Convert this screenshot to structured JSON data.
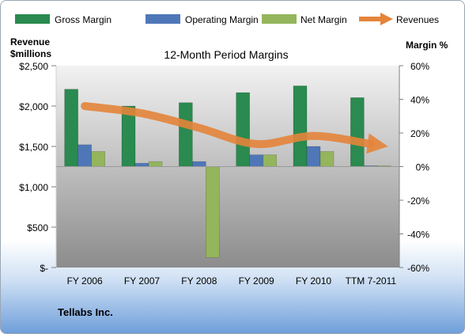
{
  "company": "Tellabs Inc.",
  "colors": {
    "gross_margin": "#2a8a4f",
    "operating_margin": "#4f77b8",
    "net_margin": "#94b55c",
    "revenues": "#e4843a",
    "plot_top": "#f2f2f2",
    "plot_bottom": "#8c8c8c"
  },
  "chart_data": {
    "type": "bar",
    "title": "12-Month Period Margins",
    "y_left_label_lines": [
      "Revenue",
      "$millions"
    ],
    "y_right_label": "Margin %",
    "categories": [
      "FY 2006",
      "FY 2007",
      "FY 2008",
      "FY 2009",
      "FY 2010",
      "TTM 7-2011"
    ],
    "ylim_left": [
      0,
      2500
    ],
    "ylim_right": [
      -60,
      60
    ],
    "left_ticks": [
      {
        "value": 0,
        "label": "$-"
      },
      {
        "value": 500,
        "label": "$500"
      },
      {
        "value": 1000,
        "label": "$1,000"
      },
      {
        "value": 1500,
        "label": "$1,500"
      },
      {
        "value": 2000,
        "label": "$2,000"
      },
      {
        "value": 2500,
        "label": "$2,500"
      }
    ],
    "right_ticks": [
      {
        "value": 60,
        "label": "60%"
      },
      {
        "value": 40,
        "label": "40%"
      },
      {
        "value": 20,
        "label": "20%"
      },
      {
        "value": 0,
        "label": "0%"
      },
      {
        "value": -20,
        "label": "-20%"
      },
      {
        "value": -40,
        "label": "-40%"
      },
      {
        "value": -60,
        "label": "-60%"
      }
    ],
    "legend_position": "top",
    "series": [
      {
        "name": "Gross Margin",
        "axis": "right",
        "kind": "bar",
        "values": [
          46,
          36,
          38,
          44,
          48,
          41
        ]
      },
      {
        "name": "Operating Margin",
        "axis": "right",
        "kind": "bar",
        "values": [
          13,
          2,
          3,
          7,
          12,
          0.5
        ]
      },
      {
        "name": "Net Margin",
        "axis": "right",
        "kind": "bar",
        "values": [
          9,
          3,
          -54,
          7,
          9,
          0.5
        ]
      },
      {
        "name": "Revenues",
        "axis": "left",
        "kind": "line",
        "values": [
          2000,
          1910,
          1730,
          1530,
          1630,
          1530
        ]
      }
    ]
  }
}
